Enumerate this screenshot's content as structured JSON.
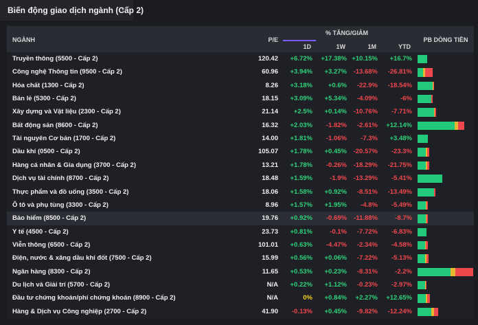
{
  "header": {
    "title": "Biến động giao dịch ngành (Cấp 2)"
  },
  "table": {
    "columns": {
      "name": "NGÀNH",
      "pe": "P/E",
      "change": "% TĂNG/GIẢM",
      "d1": "1D",
      "w1": "1W",
      "m1": "1M",
      "ytd": "YTD",
      "flow": "PB DÒNG TIỀN"
    },
    "rows": [
      [
        "Truyền thông (5500 - Cấp 2)",
        "120.42",
        "+6.72%",
        "+17.38%",
        "+10.15%",
        "+16.7%"
      ],
      [
        "Công nghệ Thông tin (9500 - Cấp 2)",
        "60.96",
        "+3.94%",
        "+3.27%",
        "-13.68%",
        "-26.81%"
      ],
      [
        "Hóa chất (1300 - Cấp 2)",
        "8.26",
        "+3.18%",
        "+0.6%",
        "-22.9%",
        "-18.54%"
      ],
      [
        "Bán lẻ (5300 - Cấp 2)",
        "18.15",
        "+3.09%",
        "+5.34%",
        "-4.09%",
        "-6%"
      ],
      [
        "Xây dựng và Vật liệu (2300 - Cấp 2)",
        "21.14",
        "+2.5%",
        "+0.14%",
        "-10.76%",
        "-7.71%"
      ],
      [
        "Bất động sản (8600 - Cấp 2)",
        "16.32",
        "+2.03%",
        "-1.82%",
        "-2.61%",
        "+12.14%"
      ],
      [
        "Tài nguyên Cơ bản (1700 - Cấp 2)",
        "14.00",
        "+1.81%",
        "-1.06%",
        "-7.3%",
        "+3.48%"
      ],
      [
        "Dầu khí (0500 - Cấp 2)",
        "105.07",
        "+1.78%",
        "+0.45%",
        "-20.57%",
        "-23.3%"
      ],
      [
        "Hàng cá nhân & Gia dụng (3700 - Cấp 2)",
        "13.21",
        "+1.78%",
        "-0.26%",
        "-18.29%",
        "-21.75%"
      ],
      [
        "Dịch vụ tài chính (8700 - Cấp 2)",
        "18.48",
        "+1.59%",
        "-1.9%",
        "-13.29%",
        "-5.41%"
      ],
      [
        "Thực phẩm và đồ uống (3500 - Cấp 2)",
        "18.06",
        "+1.58%",
        "+0.92%",
        "-8.51%",
        "-13.49%"
      ],
      [
        "Ô tô và phụ tùng (3300 - Cấp 2)",
        "8.96",
        "+1.57%",
        "+1.95%",
        "-4.8%",
        "-5.49%"
      ],
      [
        "Bảo hiểm (8500 - Cấp 2)",
        "19.76",
        "+0.92%",
        "-0.69%",
        "-11.88%",
        "-8.7%"
      ],
      [
        "Y tế (4500 - Cấp 2)",
        "23.73",
        "+0.81%",
        "-0.1%",
        "-7.72%",
        "-6.83%"
      ],
      [
        "Viễn thông (6500 - Cấp 2)",
        "101.01",
        "+0.63%",
        "-4.47%",
        "-2.34%",
        "-4.58%"
      ],
      [
        "Điện, nước & xăng dầu khí đốt (7500 - Cấp 2)",
        "15.99",
        "+0.56%",
        "+0.06%",
        "-7.22%",
        "-5.13%"
      ],
      [
        "Ngân hàng (8300 - Cấp 2)",
        "11.65",
        "+0.53%",
        "+0.23%",
        "-8.31%",
        "-2.2%"
      ],
      [
        "Du lịch và Giải trí (5700 - Cấp 2)",
        "N/A",
        "+0.22%",
        "+1.12%",
        "-0.23%",
        "-2.97%"
      ],
      [
        "Đầu tư chứng khoán/phí chứng khoán (8900 - Cấp 2)",
        "N/A",
        "0%",
        "+0.84%",
        "+2.27%",
        "+12.65%"
      ],
      [
        "Hàng & Dịch vụ Công nghiệp (2700 - Cấp 2)",
        "41.90",
        "-0.13%",
        "+0.45%",
        "-9.82%",
        "-12.24%"
      ]
    ],
    "flow": [
      [
        14,
        0,
        0
      ],
      [
        8,
        3,
        11
      ],
      [
        22,
        1,
        1
      ],
      [
        20,
        0,
        2
      ],
      [
        24,
        1,
        2
      ],
      [
        54,
        5,
        9
      ],
      [
        15,
        0,
        0
      ],
      [
        12,
        2,
        3
      ],
      [
        12,
        2,
        3
      ],
      [
        36,
        0,
        0
      ],
      [
        24,
        0,
        2
      ],
      [
        12,
        1,
        2
      ],
      [
        12,
        1,
        2
      ],
      [
        13,
        0,
        0
      ],
      [
        11,
        1,
        3
      ],
      [
        11,
        2,
        3
      ],
      [
        48,
        7,
        26
      ],
      [
        11,
        1,
        1
      ],
      [
        12,
        2,
        4
      ],
      [
        20,
        4,
        6
      ]
    ],
    "flow_colors": [
      "#22c97a",
      "#e8b730",
      "#f0474d"
    ]
  }
}
